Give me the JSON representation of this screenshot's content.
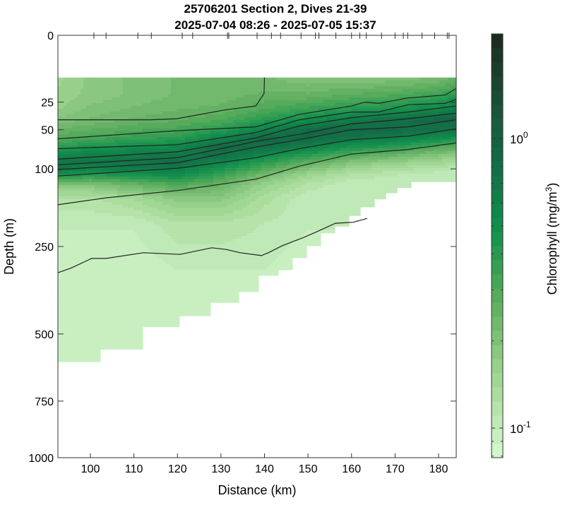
{
  "chart_data": {
    "type": "heatmap",
    "subtype": "filled-contour section",
    "title": "25706201 Section 2, Dives 21-39",
    "subtitle": "2025-07-04 08:26 - 2025-07-05 15:37",
    "xlabel": "Distance (km)",
    "ylabel": "Depth (m)",
    "xlim": [
      92.5,
      184
    ],
    "ylim": [
      0,
      1000
    ],
    "y_scale": "sqrt",
    "y_reversed": true,
    "x_ticks": [
      "100",
      "110",
      "120",
      "130",
      "140",
      "150",
      "160",
      "170",
      "180"
    ],
    "x_tick_values": [
      100,
      110,
      120,
      130,
      140,
      150,
      160,
      170,
      180
    ],
    "y_ticks": [
      "0",
      "25",
      "50",
      "100",
      "250",
      "500",
      "750",
      "1000"
    ],
    "y_tick_values": [
      0,
      25,
      50,
      100,
      250,
      500,
      750,
      1000
    ],
    "dive_tick_km": [
      100.8,
      103.6,
      110.9,
      114,
      121.1,
      123.5,
      131.5,
      131.8,
      138.3,
      141.6,
      143.7,
      148.4,
      151.7,
      152.5,
      156.4,
      160,
      161.9,
      163.4,
      166.9,
      170,
      171.9,
      172.9,
      176.2,
      179.1,
      182,
      182.4
    ],
    "colorbar": {
      "label_main": "Chlorophyll (mg/m",
      "label_sup": "3",
      "label_end": ")",
      "scale": "log",
      "range": [
        0.079,
        2.3
      ],
      "levels": 30,
      "ticks": [
        {
          "base": "10",
          "exp": "0",
          "value": 1
        },
        {
          "base": "10",
          "exp": "-1",
          "value": 0.1
        }
      ],
      "colors": [
        "#d8f8d0",
        "#c4ecbc",
        "#b0e0a4",
        "#9cd490",
        "#84c47c",
        "#6cb468",
        "#4ea858",
        "#2e9c52",
        "#14904e",
        "#108248",
        "#127248",
        "#146444",
        "#185a3c",
        "#1a4a30",
        "#1a3a26",
        "#182a1c"
      ]
    },
    "data_top_depth": 10,
    "grid_km": [
      92.5,
      100,
      110,
      120,
      130,
      140,
      150,
      160,
      170,
      180,
      184
    ],
    "grid_depth": [
      10,
      20,
      30,
      40,
      50,
      60,
      70,
      80,
      90,
      100,
      110,
      125,
      150,
      200,
      300,
      400,
      600
    ],
    "grid_values": [
      [
        0.15,
        0.18,
        0.2,
        0.22,
        0.22,
        0.22,
        0.2,
        0.2,
        0.2,
        0.22,
        0.25
      ],
      [
        0.16,
        0.18,
        0.2,
        0.22,
        0.23,
        0.25,
        0.25,
        0.28,
        0.3,
        0.35,
        0.4
      ],
      [
        0.17,
        0.2,
        0.22,
        0.24,
        0.25,
        0.3,
        0.35,
        0.4,
        0.45,
        0.55,
        0.65
      ],
      [
        0.2,
        0.22,
        0.25,
        0.27,
        0.3,
        0.4,
        0.5,
        0.65,
        0.8,
        0.9,
        0.9
      ],
      [
        0.25,
        0.27,
        0.3,
        0.32,
        0.4,
        0.6,
        0.85,
        0.9,
        0.85,
        0.75,
        0.7
      ],
      [
        0.3,
        0.33,
        0.37,
        0.4,
        0.6,
        0.9,
        0.85,
        0.7,
        0.6,
        0.5,
        0.45
      ],
      [
        0.4,
        0.45,
        0.5,
        0.55,
        0.9,
        0.8,
        0.6,
        0.45,
        0.4,
        0.3,
        0.28
      ],
      [
        0.55,
        0.6,
        0.65,
        0.7,
        0.8,
        0.55,
        0.4,
        0.3,
        0.25,
        0.2,
        0.18
      ],
      [
        0.7,
        0.7,
        0.75,
        0.8,
        0.6,
        0.4,
        0.28,
        0.2,
        0.17,
        0.15,
        0.14
      ],
      [
        0.7,
        0.6,
        0.65,
        0.65,
        0.45,
        0.3,
        0.2,
        0.15,
        0.13,
        0.12,
        0.11
      ],
      [
        0.45,
        0.4,
        0.45,
        0.5,
        0.35,
        0.22,
        0.15,
        0.12,
        0.11,
        0.1,
        0.1
      ],
      [
        0.2,
        0.2,
        0.25,
        0.3,
        0.25,
        0.16,
        0.12,
        0.1,
        0.1,
        0.1,
        0.1
      ],
      [
        0.12,
        0.12,
        0.14,
        0.18,
        0.18,
        0.13,
        0.1,
        0.1,
        0.1,
        0.1,
        0.1
      ],
      [
        0.1,
        0.1,
        0.1,
        0.12,
        0.12,
        0.11,
        0.1,
        0.1,
        0.1,
        0.1,
        0.1
      ],
      [
        0.09,
        0.09,
        0.09,
        0.1,
        0.1,
        0.1,
        0.09,
        0.09,
        0.09,
        0.09,
        0.09
      ],
      [
        0.09,
        0.09,
        0.09,
        0.09,
        0.09,
        0.09,
        0.09,
        0.09,
        0.09,
        0.09,
        0.09
      ],
      [
        0.09,
        0.09,
        0.09,
        0.09,
        0.09,
        0.09,
        0.09,
        0.09,
        0.09,
        0.09,
        0.09
      ]
    ],
    "data_bottom": [
      [
        92.5,
        102.1,
        597
      ],
      [
        102.1,
        111.7,
        552
      ],
      [
        111.7,
        120.5,
        476
      ],
      [
        120.5,
        127.9,
        441
      ],
      [
        127.9,
        134,
        400
      ],
      [
        134,
        138.8,
        368
      ],
      [
        138.8,
        143,
        323
      ],
      [
        143,
        146.4,
        308
      ],
      [
        146.4,
        149.8,
        277
      ],
      [
        149.8,
        153.2,
        248
      ],
      [
        153.2,
        156.3,
        219
      ],
      [
        156.3,
        159.5,
        204
      ],
      [
        159.5,
        162.1,
        182
      ],
      [
        162.1,
        165,
        165
      ],
      [
        165,
        168,
        150
      ],
      [
        168,
        170.5,
        139
      ],
      [
        170.5,
        173.5,
        130
      ],
      [
        173.5,
        184,
        120
      ]
    ],
    "contours": [
      [
        [
          92.5,
          40
        ],
        [
          103.6,
          40
        ],
        [
          113.8,
          40
        ],
        [
          119.8,
          39
        ],
        [
          131.2,
          31
        ],
        [
          138,
          28
        ],
        [
          139.9,
          19
        ],
        [
          140,
          10
        ]
      ],
      [
        [
          92.5,
          60
        ],
        [
          120,
          51
        ],
        [
          138,
          47
        ],
        [
          148,
          35
        ],
        [
          160,
          28
        ],
        [
          163,
          25
        ],
        [
          166.2,
          26
        ],
        [
          173,
          22
        ],
        [
          181.5,
          20
        ],
        [
          184,
          16
        ]
      ],
      [
        [
          92.5,
          72
        ],
        [
          120,
          67
        ],
        [
          138,
          53
        ],
        [
          148,
          40
        ],
        [
          160,
          33
        ],
        [
          166.2,
          33
        ],
        [
          173,
          27
        ],
        [
          181.5,
          26
        ],
        [
          184,
          23
        ]
      ],
      [
        [
          92.5,
          86
        ],
        [
          120,
          76
        ],
        [
          138,
          59
        ],
        [
          148,
          46
        ],
        [
          160,
          38
        ],
        [
          173,
          33
        ],
        [
          184,
          28
        ]
      ],
      [
        [
          92.5,
          94
        ],
        [
          120,
          84
        ],
        [
          138,
          63
        ],
        [
          148,
          55
        ],
        [
          160,
          44
        ],
        [
          173,
          39
        ],
        [
          184,
          34
        ]
      ],
      [
        [
          92.5,
          101
        ],
        [
          120,
          91
        ],
        [
          138,
          70
        ],
        [
          148,
          61
        ],
        [
          160,
          50
        ],
        [
          173,
          47
        ],
        [
          184,
          40
        ]
      ],
      [
        [
          92.5,
          111
        ],
        [
          120,
          99
        ],
        [
          138,
          84
        ],
        [
          148,
          72
        ],
        [
          160,
          61
        ],
        [
          173,
          57
        ],
        [
          184,
          49
        ]
      ],
      [
        [
          92.5,
          161
        ],
        [
          103.6,
          148
        ],
        [
          120,
          135
        ],
        [
          138,
          116
        ],
        [
          148,
          96
        ],
        [
          160,
          79
        ],
        [
          173,
          73
        ],
        [
          184,
          65
        ]
      ],
      [
        [
          92.5,
          316
        ],
        [
          95.5,
          304
        ],
        [
          100.3,
          279
        ],
        [
          103.6,
          279
        ],
        [
          112.2,
          265
        ],
        [
          120.6,
          269
        ],
        [
          127.9,
          253
        ],
        [
          131.2,
          257
        ],
        [
          134.4,
          265
        ],
        [
          139.3,
          272
        ],
        [
          140.9,
          265
        ],
        [
          144.1,
          248
        ],
        [
          149,
          229
        ],
        [
          152.3,
          215
        ],
        [
          156.3,
          198
        ],
        [
          160.4,
          196
        ],
        [
          163.6,
          188
        ]
      ]
    ]
  }
}
